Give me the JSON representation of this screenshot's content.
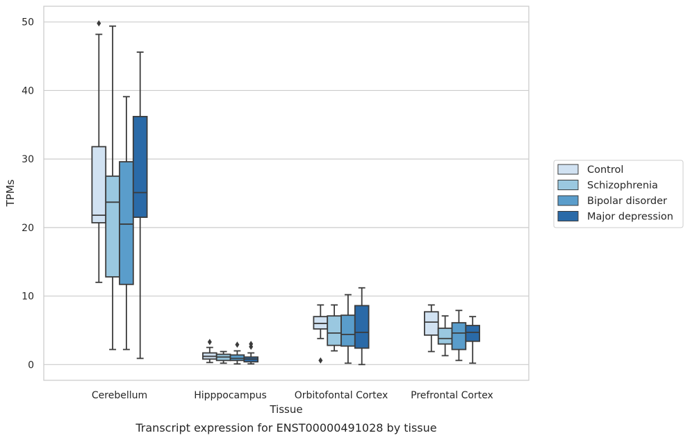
{
  "caption": "Transcript expression for ENST00000491028 by tissue",
  "chart_data": {
    "type": "box",
    "title": "",
    "xlabel": "Tissue",
    "ylabel": "TPMs",
    "ylim": [
      -2.3,
      52.3
    ],
    "yticks": [
      0,
      10,
      20,
      30,
      40,
      50
    ],
    "grid": "horizontal",
    "legend_position": "right",
    "categories": [
      "Cerebellum",
      "Hipppocampus",
      "Orbitofontal Cortex",
      "Prefrontal Cortex"
    ],
    "series": [
      {
        "name": "Control",
        "color": "#d1e2f2",
        "boxes": [
          {
            "whisker_low": 12.0,
            "q1": 20.7,
            "median": 21.8,
            "q3": 31.8,
            "whisker_high": 48.2,
            "outliers": [
              49.8
            ]
          },
          {
            "whisker_low": 0.3,
            "q1": 0.8,
            "median": 1.2,
            "q3": 1.7,
            "whisker_high": 2.5,
            "outliers": [
              3.3
            ]
          },
          {
            "whisker_low": 3.8,
            "q1": 5.2,
            "median": 6.0,
            "q3": 7.0,
            "whisker_high": 8.7,
            "outliers": [
              0.6
            ]
          },
          {
            "whisker_low": 1.9,
            "q1": 4.3,
            "median": 6.2,
            "q3": 7.7,
            "whisker_high": 8.7,
            "outliers": []
          }
        ]
      },
      {
        "name": "Schizophrenia",
        "color": "#9ac8e0",
        "boxes": [
          {
            "whisker_low": 2.2,
            "q1": 12.8,
            "median": 23.7,
            "q3": 27.5,
            "whisker_high": 49.4,
            "outliers": []
          },
          {
            "whisker_low": 0.2,
            "q1": 0.6,
            "median": 1.1,
            "q3": 1.5,
            "whisker_high": 1.9,
            "outliers": []
          },
          {
            "whisker_low": 2.0,
            "q1": 2.8,
            "median": 4.6,
            "q3": 7.1,
            "whisker_high": 8.7,
            "outliers": []
          },
          {
            "whisker_low": 1.3,
            "q1": 3.0,
            "median": 3.8,
            "q3": 5.3,
            "whisker_high": 7.1,
            "outliers": []
          }
        ]
      },
      {
        "name": "Bipolar disorder",
        "color": "#5a9dcb",
        "boxes": [
          {
            "whisker_low": 2.2,
            "q1": 11.7,
            "median": 20.5,
            "q3": 29.6,
            "whisker_high": 39.1,
            "outliers": []
          },
          {
            "whisker_low": 0.1,
            "q1": 0.6,
            "median": 0.9,
            "q3": 1.4,
            "whisker_high": 2.0,
            "outliers": [
              2.9
            ]
          },
          {
            "whisker_low": 0.2,
            "q1": 2.7,
            "median": 4.4,
            "q3": 7.2,
            "whisker_high": 10.2,
            "outliers": []
          },
          {
            "whisker_low": 0.6,
            "q1": 2.2,
            "median": 4.6,
            "q3": 6.1,
            "whisker_high": 7.9,
            "outliers": []
          }
        ]
      },
      {
        "name": "Major depression",
        "color": "#2a6aa8",
        "boxes": [
          {
            "whisker_low": 0.9,
            "q1": 21.5,
            "median": 25.1,
            "q3": 36.2,
            "whisker_high": 45.6,
            "outliers": []
          },
          {
            "whisker_low": 0.1,
            "q1": 0.4,
            "median": 0.8,
            "q3": 1.1,
            "whisker_high": 1.7,
            "outliers": [
              2.6,
              3.0
            ]
          },
          {
            "whisker_low": 0.0,
            "q1": 2.4,
            "median": 4.7,
            "q3": 8.6,
            "whisker_high": 11.2,
            "outliers": []
          },
          {
            "whisker_low": 0.2,
            "q1": 3.4,
            "median": 4.7,
            "q3": 5.7,
            "whisker_high": 7.0,
            "outliers": []
          }
        ]
      }
    ]
  }
}
